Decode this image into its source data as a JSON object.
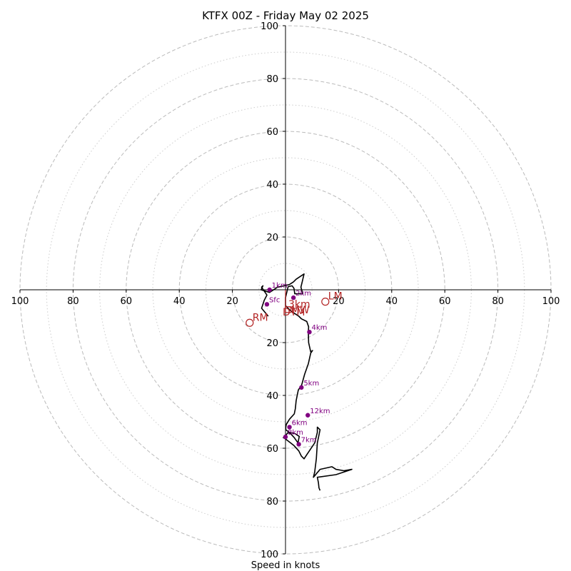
{
  "chart_data": {
    "type": "line",
    "title": "KTFX 00Z - Friday May 02 2025",
    "xlabel": "Speed in knots",
    "ylabel": "",
    "xlim": [
      -100,
      100
    ],
    "ylim": [
      -100,
      100
    ],
    "x_ticks": [
      "100",
      "80",
      "60",
      "40",
      "20",
      "20",
      "40",
      "60",
      "80",
      "100"
    ],
    "y_ticks": [
      "100",
      "80",
      "60",
      "40",
      "20",
      "20",
      "40",
      "60",
      "80",
      "100"
    ],
    "rings_major": [
      20,
      40,
      60,
      80,
      100
    ],
    "rings_minor": [
      10,
      30,
      50,
      70,
      90
    ],
    "grid": true,
    "colors": {
      "trace": "#000000",
      "height_marker": "#800080",
      "motion": "#b22222",
      "grid": "#bbbbbb"
    },
    "hodograph": {
      "u": [
        -6.5,
        -9,
        -8,
        -7,
        -9,
        -8.5,
        -9.2,
        -6,
        -3,
        -0.5,
        1.5,
        3,
        4,
        7,
        6.3,
        5.8,
        6.5,
        3.5,
        3.2,
        2.5,
        1,
        0,
        0,
        1,
        2,
        3.5,
        5,
        6,
        8,
        8.7,
        8.6,
        8.7,
        9.5,
        10.2,
        9.5,
        8.6,
        7.2,
        6.1,
        4.8,
        4,
        3.7,
        3.3,
        1.5,
        0.3,
        0.1,
        0.1,
        1.5,
        3.6,
        5.2,
        4.9,
        4.7,
        3.3,
        1.9,
        1,
        0.2,
        -0.8,
        0,
        3.2,
        5,
        6,
        7,
        8.3,
        11,
        12,
        12,
        13,
        12,
        11.6,
        11,
        10.5,
        13,
        17.5,
        19,
        22,
        25,
        19,
        12,
        12.4,
        12.6,
        13
      ],
      "v": [
        -10,
        -7,
        -4,
        -2,
        1,
        1.5,
        0,
        -1,
        1,
        1.5,
        2,
        3,
        4,
        6,
        3,
        1,
        -1.5,
        -1.5,
        0.5,
        1.5,
        1.2,
        -3,
        -6,
        -7,
        -8,
        -9,
        -10,
        -11,
        -12,
        -14,
        -16,
        -20,
        -23.5,
        -23,
        -24,
        -28,
        -32,
        -36,
        -38,
        -42,
        -45,
        -47,
        -49,
        -51,
        -52,
        -53,
        -54,
        -54.5,
        -55.5,
        -57,
        -58,
        -56,
        -54.5,
        -54,
        -55,
        -56,
        -56.5,
        -59,
        -61,
        -63,
        -64,
        -62,
        -58,
        -54,
        -52,
        -53,
        -58,
        -64,
        -69,
        -71,
        -68,
        -67,
        -68,
        -68.5,
        -68,
        -70,
        -71,
        -73,
        -75,
        -76
      ],
      "markers": [
        {
          "label": "Sfc",
          "u": -7,
          "v": -5.5
        },
        {
          "label": "1km",
          "u": -6,
          "v": 0
        },
        {
          "label": "2km",
          "u": 3,
          "v": -3
        },
        {
          "label": "4km",
          "u": 9,
          "v": -16
        },
        {
          "label": "5km",
          "u": 6,
          "v": -37
        },
        {
          "label": "12km",
          "u": 8.4,
          "v": -47.5
        },
        {
          "label": "6km",
          "u": 1.5,
          "v": -52
        },
        {
          "label": "8km",
          "u": 0,
          "v": -55.7
        },
        {
          "label": "7km",
          "u": 5,
          "v": -58.5
        }
      ]
    },
    "storm_motion": [
      {
        "label": "RM",
        "u": -13.5,
        "v": -12.5
      },
      {
        "label": "LM",
        "u": 15,
        "v": -4.5
      },
      {
        "label": "MW",
        "u": 1,
        "v": -7.5
      }
    ],
    "annotations": [
      "3km",
      "DTM"
    ]
  }
}
